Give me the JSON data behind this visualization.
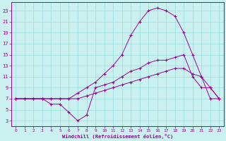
{
  "xlabel": "Windchill (Refroidissement éolien,°C)",
  "background_color": "#caf0f0",
  "grid_color": "#99dddd",
  "line_color": "#990099",
  "xlim": [
    -0.5,
    23.5
  ],
  "ylim": [
    2,
    24.5
  ],
  "xticks": [
    0,
    1,
    2,
    3,
    4,
    5,
    6,
    7,
    8,
    9,
    10,
    11,
    12,
    13,
    14,
    15,
    16,
    17,
    18,
    19,
    20,
    21,
    22,
    23
  ],
  "yticks": [
    3,
    5,
    7,
    9,
    11,
    13,
    15,
    17,
    19,
    21,
    23
  ],
  "line1_x": [
    0,
    1,
    2,
    3,
    4,
    5,
    6,
    7,
    8,
    9,
    10,
    11,
    12,
    13,
    14,
    15,
    16,
    17,
    18,
    19,
    20,
    21,
    22,
    23
  ],
  "line1_y": [
    7,
    7,
    7,
    7,
    7,
    7,
    7,
    7,
    7.5,
    8,
    8.5,
    9,
    9.5,
    10,
    10.5,
    11,
    11.5,
    12,
    12.5,
    12.5,
    11.5,
    11,
    9,
    7
  ],
  "line2_x": [
    0,
    1,
    2,
    3,
    4,
    5,
    6,
    7,
    8,
    9,
    10,
    11,
    12,
    13,
    14,
    15,
    16,
    17,
    18,
    19,
    20,
    21,
    22,
    23
  ],
  "line2_y": [
    7,
    7,
    7,
    7,
    6,
    6,
    4.5,
    3,
    4,
    9,
    9.5,
    10,
    11,
    12,
    12.5,
    13.5,
    14,
    14,
    14.5,
    15,
    11,
    9,
    9,
    7
  ],
  "line3_x": [
    0,
    1,
    2,
    3,
    4,
    5,
    6,
    7,
    8,
    9,
    10,
    11,
    12,
    13,
    14,
    15,
    16,
    17,
    18,
    19,
    20,
    21,
    22,
    23
  ],
  "line3_y": [
    7,
    7,
    7,
    7,
    7,
    7,
    7,
    8,
    9,
    10,
    11.5,
    13,
    15,
    18.5,
    21,
    23,
    23.5,
    23,
    22,
    19,
    15,
    11,
    7,
    7
  ]
}
